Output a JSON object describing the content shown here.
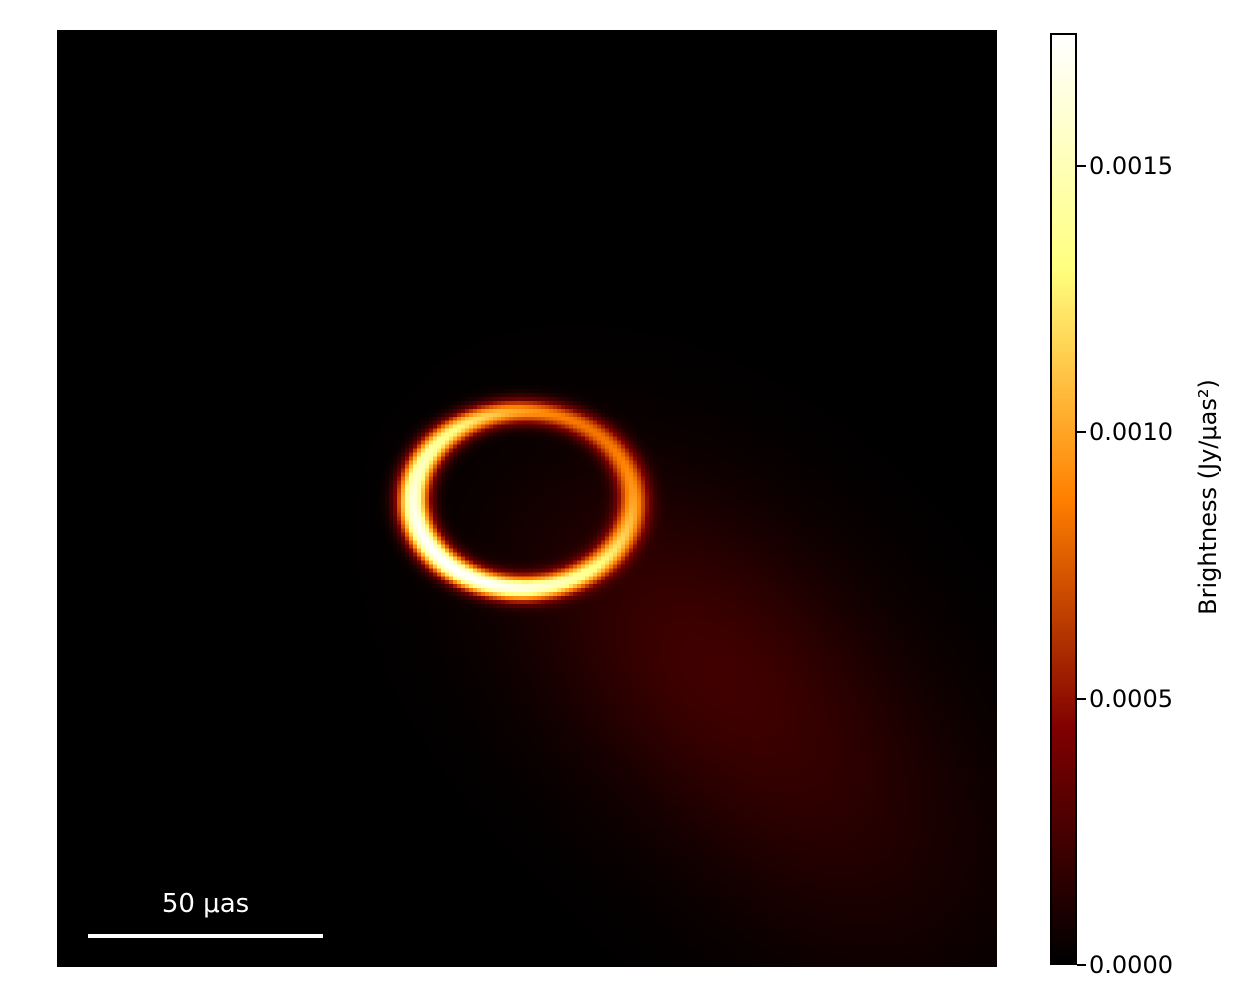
{
  "figure": {
    "background_color": "#ffffff",
    "panel_background_color": "#000000"
  },
  "chart_data": {
    "type": "heatmap",
    "title": "",
    "description": "Simulated black-hole image: bright asymmetric photon ring (brightest toward the lower left) over a black background, with very faint extended jet/accretion emission trailing toward the lower-right corner",
    "colormap": "afmhot",
    "colorbar": {
      "orientation": "vertical",
      "position": "right",
      "label": "Brightness (Jy/μas²)",
      "tick_values": [
        0.0,
        0.0005,
        0.001,
        0.0015
      ],
      "tick_labels": [
        "0.0000",
        "0.0005",
        "0.0010",
        "0.0015"
      ],
      "vmin": 0.0,
      "vmax": 0.00175
    },
    "scale_bar": {
      "label": "50 μas",
      "length_uas": 50,
      "color": "#ffffff"
    },
    "image_measurements": {
      "field_of_view_uas_approx": 200,
      "ring_diameter_horizontal_uas_approx": 47,
      "ring_diameter_vertical_uas_approx": 38,
      "peak_brightness_jy_per_uas2_approx": 0.00175,
      "brightest_side": "lower-left",
      "faint_emission_direction": "lower-right"
    },
    "model": {
      "grid": 235,
      "ring": {
        "cx": 0.4957,
        "cy": 0.5016,
        "rx": 0.117,
        "ry": 0.0945,
        "r_eff": 0.106,
        "sigma": 0.0105,
        "base": 0.73,
        "amp": 0.27,
        "peak_angle_deg": 140
      },
      "blobs": [
        {
          "cx": 0.684,
          "cy": 0.667,
          "sigma_major": 0.155,
          "sigma_minor": 0.105,
          "angle_deg": 42,
          "amp": 0.115
        },
        {
          "cx": 0.85,
          "cy": 0.86,
          "sigma_major": 0.14,
          "sigma_minor": 0.11,
          "angle_deg": 45,
          "amp": 0.045
        }
      ]
    },
    "colors": {
      "low": "#000000",
      "quarter": "#800000",
      "mid": "#ff8000",
      "three_quarter": "#ffff80",
      "high": "#ffffff"
    }
  }
}
